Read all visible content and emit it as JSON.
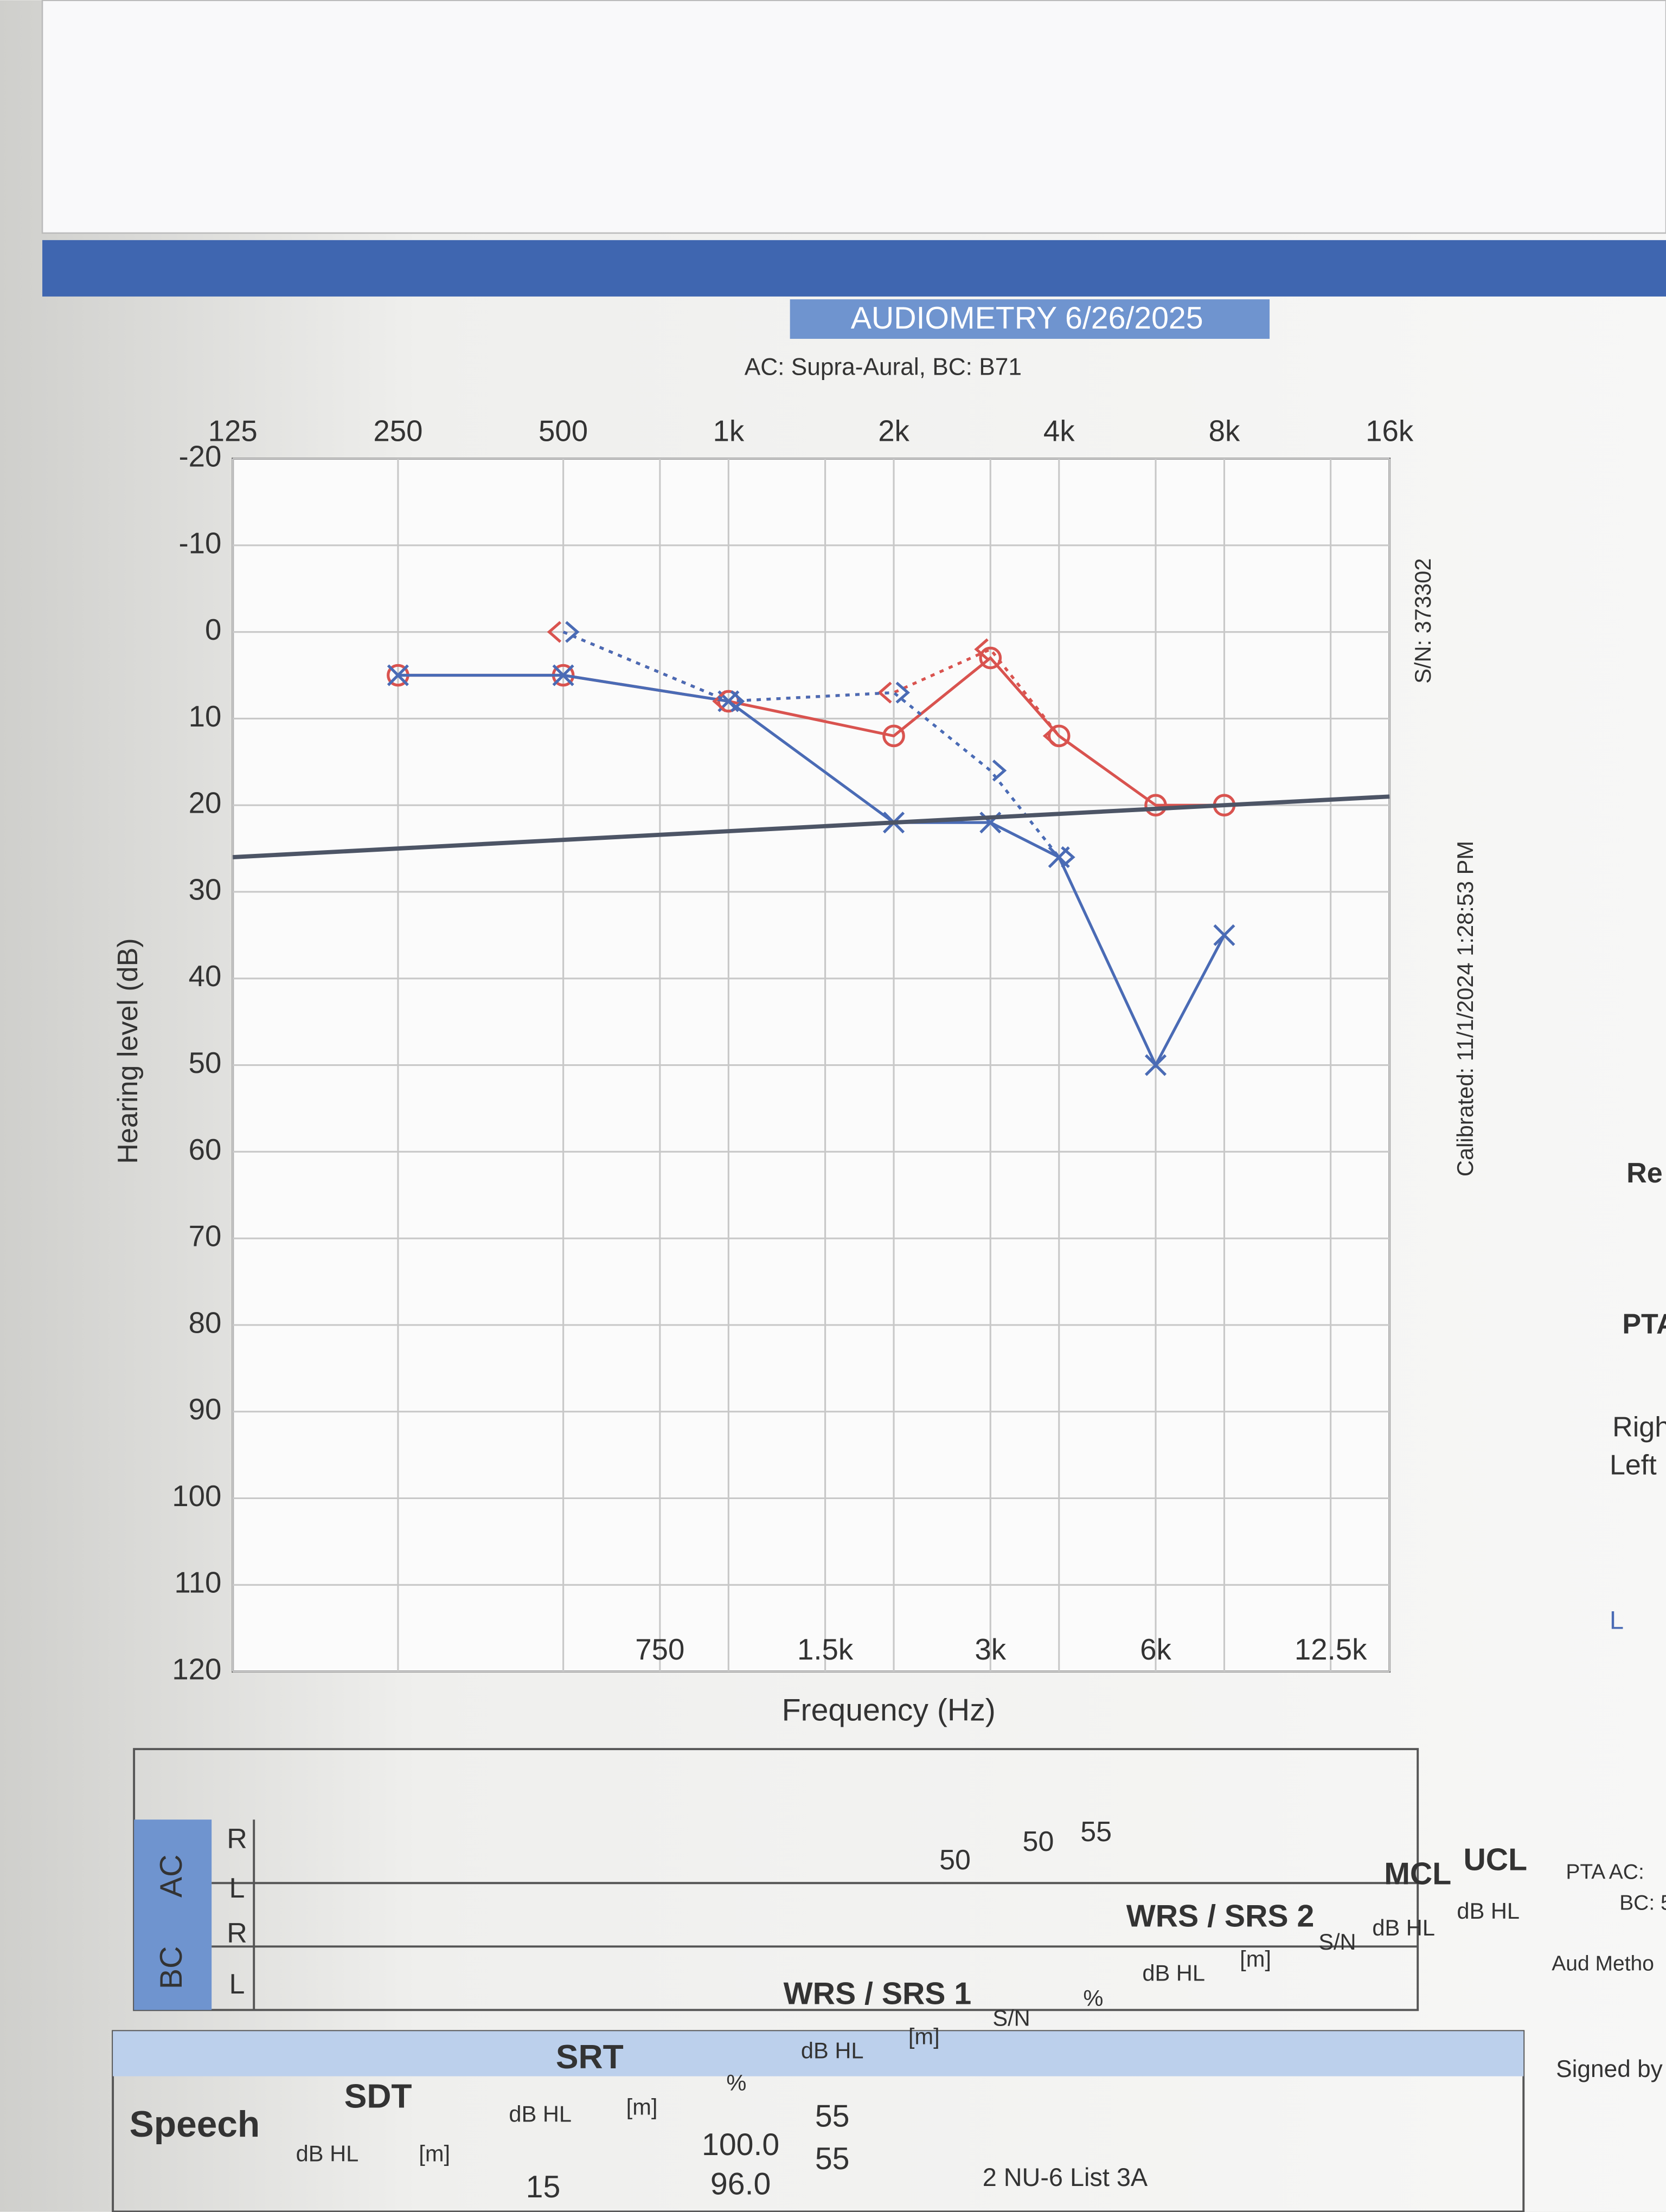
{
  "chart_data": {
    "type": "line",
    "title": "AUDIOMETRY 6/26/2025",
    "subtitle": "AC: Supra-Aural, BC: B71",
    "xlabel": "Frequency (Hz)",
    "ylabel": "Hearing level (dB)",
    "xscale": "log",
    "y_inverted": true,
    "grid": true,
    "xlim": [
      125,
      16000
    ],
    "ylim": [
      -20,
      120
    ],
    "yticks": [
      -20,
      -10,
      0,
      10,
      20,
      30,
      40,
      50,
      60,
      70,
      80,
      90,
      100,
      110,
      120
    ],
    "xticks": [
      125,
      250,
      500,
      {
        "value": 1000,
        "label": "1k"
      },
      {
        "value": 2000,
        "label": "2k"
      },
      {
        "value": 4000,
        "label": "4k"
      },
      {
        "value": 8000,
        "label": "8k"
      },
      {
        "value": 16000,
        "label": "16k"
      }
    ],
    "xticks_bottom": [
      750,
      {
        "value": 1500,
        "label": "1.5k"
      },
      {
        "value": 3000,
        "label": "3k"
      },
      {
        "value": 6000,
        "label": "6k"
      },
      {
        "value": 12500,
        "label": "12.5k"
      }
    ],
    "series": [
      {
        "color": "#d9534f",
        "marker": "o",
        "dash": false,
        "x": [
          250,
          500,
          1000,
          2000,
          3000,
          4000,
          6000,
          8000
        ],
        "values": [
          5,
          5,
          8,
          12,
          3,
          12,
          20,
          20
        ]
      },
      {
        "color": "#4a6bb5",
        "marker": "x",
        "dash": false,
        "x": [
          250,
          500,
          1000,
          2000,
          3000,
          4000,
          6000,
          8000
        ],
        "values": [
          5,
          5,
          8,
          22,
          22,
          26,
          50,
          35
        ]
      },
      {
        "color": "#d9534f",
        "marker": "<",
        "dash": true,
        "x": [
          500,
          1000,
          2000,
          3000,
          4000
        ],
        "values": [
          0,
          8,
          7,
          2,
          12
        ]
      },
      {
        "color": "#4a6bb5",
        "marker": ">",
        "dash": true,
        "x": [
          500,
          1000,
          2000,
          3000,
          4000
        ],
        "values": [
          0,
          8,
          7,
          16,
          26
        ]
      },
      {
        "color": "#4d5566",
        "marker": "none",
        "dash": false,
        "x": [
          125,
          16000
        ],
        "values": [
          26,
          19
        ]
      }
    ],
    "annotations": [
      "S/N: 373302",
      "Calibrated: 11/1/2024 1:28:53 PM"
    ]
  },
  "masking_table": {
    "groups": [
      "AC",
      "BC"
    ],
    "rows": [
      "R",
      "L",
      "R",
      "L"
    ],
    "values": [
      50,
      50,
      55
    ]
  },
  "speech_table": {
    "title": "Speech",
    "columns": [
      "SDT",
      "SRT",
      "WRS / SRS 1",
      "WRS / SRS 2",
      "MCL",
      "UCL"
    ],
    "units": [
      "dB HL",
      "[m]",
      "dB HL",
      "[m]",
      "%",
      "dB HL",
      "[m]",
      "S/N",
      "%",
      "dB HL",
      "[m]",
      "S/N",
      "dB HL",
      "dB HL"
    ],
    "cells": [
      "15",
      "100.0",
      "55",
      "96.0",
      "55"
    ],
    "list": "2 NU-6 List 3A"
  },
  "side_panel": [
    "Re",
    "PTA",
    "Righ",
    "Left",
    "L",
    "PTA AC:",
    "BC: 5",
    "Aud Metho",
    "Signed by"
  ]
}
